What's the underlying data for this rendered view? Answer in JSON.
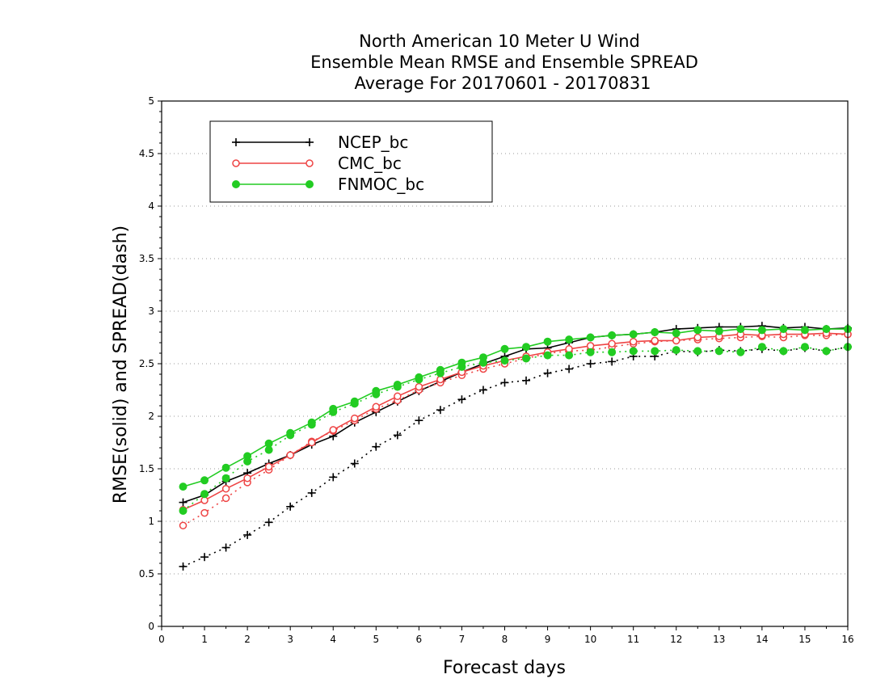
{
  "chart_data": {
    "type": "line",
    "title": [
      "North American 10 Meter U Wind",
      "Ensemble Mean RMSE and Ensemble SPREAD",
      "Average For 20170601 - 20170831"
    ],
    "xlabel": "Forecast days",
    "ylabel": "RMSE(solid) and SPREAD(dash)",
    "xlim": [
      0,
      16
    ],
    "ylim": [
      0,
      5
    ],
    "xticks": [
      "0",
      "1",
      "2",
      "3",
      "4",
      "5",
      "6",
      "7",
      "8",
      "9",
      "10",
      "11",
      "12",
      "13",
      "14",
      "15",
      "16"
    ],
    "yticks": [
      "0",
      "0.5",
      "1",
      "1.5",
      "2",
      "2.5",
      "3",
      "3.5",
      "4",
      "4.5",
      "5"
    ],
    "grid": "horizontal dotted",
    "legend_position": "top-left",
    "x": [
      0.5,
      1,
      1.5,
      2,
      2.5,
      3,
      3.5,
      4,
      4.5,
      5,
      5.5,
      6,
      6.5,
      7,
      7.5,
      8,
      8.5,
      9,
      9.5,
      10,
      10.5,
      11,
      11.5,
      12,
      12.5,
      13,
      13.5,
      14,
      14.5,
      15,
      15.5,
      16
    ],
    "series": [
      {
        "name": "NCEP_bc",
        "color": "#000000",
        "marker": "plus",
        "rmse": [
          1.18,
          1.25,
          1.38,
          1.46,
          1.55,
          1.63,
          1.73,
          1.81,
          1.94,
          2.04,
          2.14,
          2.24,
          2.33,
          2.42,
          2.5,
          2.57,
          2.64,
          2.65,
          2.7,
          2.75,
          2.77,
          2.78,
          2.8,
          2.83,
          2.84,
          2.85,
          2.85,
          2.86,
          2.84,
          2.85,
          2.83,
          2.84
        ],
        "spread": [
          0.57,
          0.66,
          0.75,
          0.87,
          0.99,
          1.14,
          1.27,
          1.42,
          1.55,
          1.71,
          1.82,
          1.96,
          2.06,
          2.16,
          2.25,
          2.32,
          2.34,
          2.41,
          2.45,
          2.5,
          2.52,
          2.57,
          2.57,
          2.62,
          2.61,
          2.63,
          2.62,
          2.64,
          2.62,
          2.65,
          2.62,
          2.66
        ]
      },
      {
        "name": "CMC_bc",
        "color": "#ee4444",
        "marker": "open-circle",
        "rmse": [
          1.11,
          1.2,
          1.31,
          1.41,
          1.52,
          1.63,
          1.75,
          1.87,
          1.98,
          2.09,
          2.19,
          2.28,
          2.35,
          2.42,
          2.48,
          2.53,
          2.57,
          2.61,
          2.64,
          2.67,
          2.69,
          2.71,
          2.72,
          2.72,
          2.75,
          2.76,
          2.78,
          2.77,
          2.78,
          2.78,
          2.79,
          2.78
        ],
        "spread": [
          0.96,
          1.08,
          1.22,
          1.37,
          1.49,
          1.63,
          1.76,
          1.86,
          1.96,
          2.07,
          2.15,
          2.25,
          2.32,
          2.39,
          2.45,
          2.5,
          2.55,
          2.6,
          2.62,
          2.63,
          2.66,
          2.69,
          2.71,
          2.72,
          2.73,
          2.74,
          2.75,
          2.76,
          2.75,
          2.77,
          2.77,
          2.78
        ]
      },
      {
        "name": "FNMOC_bc",
        "color": "#22cc22",
        "marker": "filled-circle",
        "rmse": [
          1.33,
          1.39,
          1.51,
          1.62,
          1.74,
          1.84,
          1.94,
          2.07,
          2.14,
          2.24,
          2.3,
          2.37,
          2.44,
          2.51,
          2.56,
          2.64,
          2.66,
          2.71,
          2.73,
          2.75,
          2.77,
          2.78,
          2.8,
          2.79,
          2.82,
          2.81,
          2.83,
          2.82,
          2.83,
          2.82,
          2.83,
          2.83
        ],
        "spread": [
          1.1,
          1.26,
          1.41,
          1.57,
          1.68,
          1.82,
          1.92,
          2.04,
          2.12,
          2.21,
          2.28,
          2.35,
          2.41,
          2.47,
          2.51,
          2.53,
          2.55,
          2.58,
          2.58,
          2.61,
          2.61,
          2.62,
          2.62,
          2.63,
          2.62,
          2.62,
          2.61,
          2.66,
          2.62,
          2.66,
          2.62,
          2.66
        ]
      }
    ]
  }
}
